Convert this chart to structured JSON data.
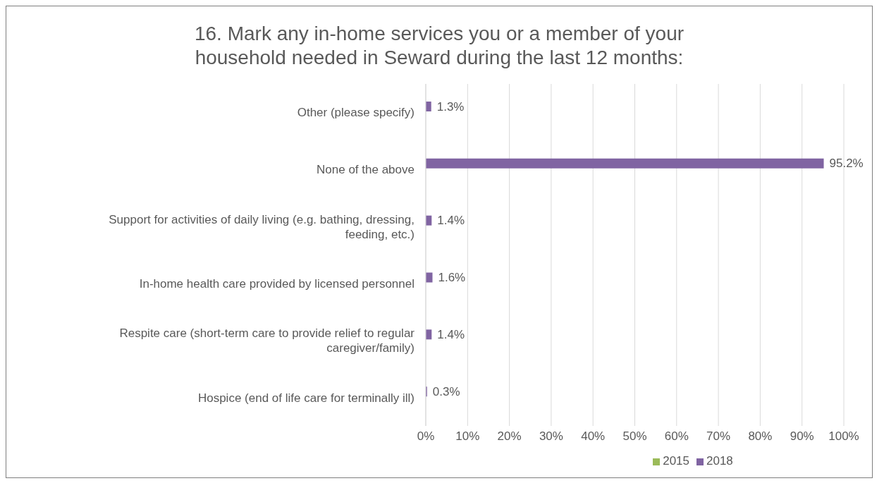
{
  "chart_data": {
    "type": "bar",
    "orientation": "horizontal",
    "title": "16. Mark any in-home services you or a member of your household needed in Seward during the last 12 months:",
    "categories": [
      "Other (please specify)",
      "None of the above",
      "Support for activities of daily living (e.g. bathing, dressing, feeding, etc.)",
      "In-home health care provided by licensed personnel",
      "Respite care (short-term care to provide relief to regular caregiver/family)",
      "Hospice (end of life care for terminally ill)"
    ],
    "series": [
      {
        "name": "2018",
        "color": "#8064a2",
        "values": [
          1.3,
          95.2,
          1.4,
          1.6,
          1.4,
          0.3
        ],
        "value_labels": [
          "1.3%",
          "95.2%",
          "1.4%",
          "1.6%",
          "1.4%",
          "0.3%"
        ]
      },
      {
        "name": "2015",
        "color": "#9bbb59",
        "values": [
          null,
          null,
          null,
          null,
          null,
          null
        ]
      }
    ],
    "xlim": [
      0,
      100
    ],
    "xticks": [
      {
        "value": 0,
        "label": "0%"
      },
      {
        "value": 10,
        "label": "10%"
      },
      {
        "value": 20,
        "label": "20%"
      },
      {
        "value": 30,
        "label": "30%"
      },
      {
        "value": 40,
        "label": "40%"
      },
      {
        "value": 50,
        "label": "50%"
      },
      {
        "value": 60,
        "label": "60%"
      },
      {
        "value": 70,
        "label": "70%"
      },
      {
        "value": 80,
        "label": "80%"
      },
      {
        "value": 90,
        "label": "90%"
      },
      {
        "value": 100,
        "label": "100%"
      }
    ],
    "grid": "x",
    "legend": "bottom"
  }
}
